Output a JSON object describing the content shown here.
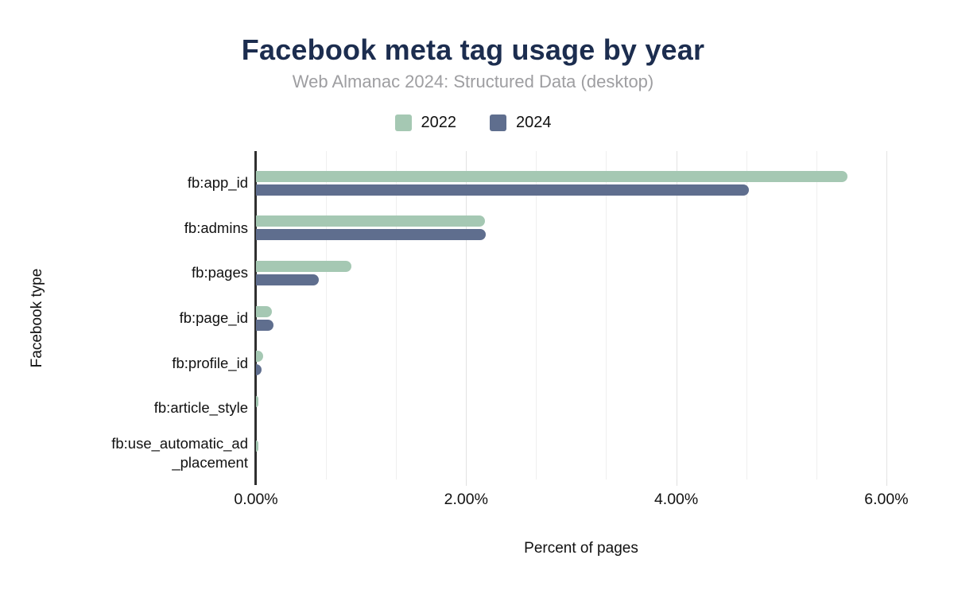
{
  "title": "Facebook meta tag usage by year",
  "subtitle": "Web Almanac 2024: Structured Data (desktop)",
  "colors": {
    "title": "#1c2d4f",
    "subtitle": "#9e9ea1",
    "axis_line": "#2f2f2f",
    "gridline_minor": "#efefef",
    "gridline_major": "#e3e3e3",
    "series_2022": "#a5c8b3",
    "series_2024": "#5f6e8e"
  },
  "chart_data": {
    "type": "bar",
    "orientation": "horizontal",
    "title": "Facebook meta tag usage by year",
    "subtitle": "Web Almanac 2024: Structured Data (desktop)",
    "xlabel": "Percent of pages",
    "ylabel": "Facebook type",
    "legend_position": "top-center",
    "grid": "vertical, minor gridlines every 0.667%, major at labeled ticks",
    "xlim": [
      0,
      6.19
    ],
    "x_ticks": [
      {
        "value": 0,
        "label": "0.00%"
      },
      {
        "value": 2,
        "label": "2.00%"
      },
      {
        "value": 4,
        "label": "4.00%"
      },
      {
        "value": 6,
        "label": "6.00%"
      }
    ],
    "categories": [
      {
        "label": "fb:app_id",
        "display": "fb:app_id"
      },
      {
        "label": "fb:admins",
        "display": "fb:admins"
      },
      {
        "label": "fb:pages",
        "display": "fb:pages"
      },
      {
        "label": "fb:page_id",
        "display": "fb:page_id"
      },
      {
        "label": "fb:profile_id",
        "display": "fb:profile_id"
      },
      {
        "label": "fb:article_style",
        "display": "fb:article_style"
      },
      {
        "label": "fb:use_automatic_ad_placement",
        "display": "fb:use_automatic_ad\n_placement"
      }
    ],
    "series": [
      {
        "name": "2022",
        "color": "#a5c8b3",
        "values": [
          5.63,
          2.18,
          0.91,
          0.15,
          0.07,
          0.02,
          0.02
        ]
      },
      {
        "name": "2024",
        "color": "#5f6e8e",
        "values": [
          4.69,
          2.19,
          0.6,
          0.17,
          0.05,
          0,
          0
        ]
      }
    ]
  }
}
